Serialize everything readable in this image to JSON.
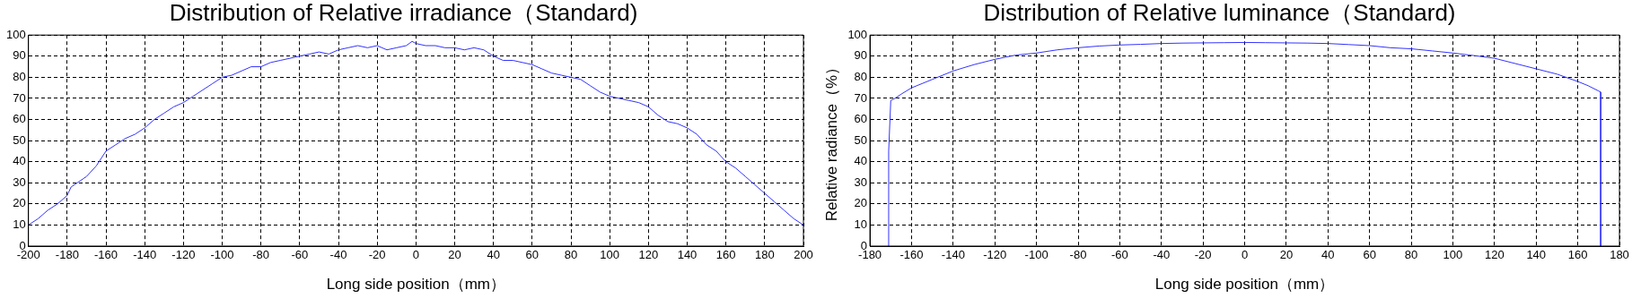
{
  "chart_data": [
    {
      "type": "line",
      "title": "Distribution of Relative irradiance（Standard)",
      "xlabel": "Long side position（mm）",
      "x": [
        -200,
        -195,
        -190,
        -185,
        -180,
        -178,
        -170,
        -165,
        -160,
        -155,
        -150,
        -145,
        -140,
        -135,
        -130,
        -125,
        -120,
        -115,
        -110,
        -105,
        -100,
        -95,
        -90,
        -85,
        -80,
        -75,
        -70,
        -65,
        -60,
        -55,
        -50,
        -45,
        -40,
        -35,
        -30,
        -25,
        -20,
        -15,
        -10,
        -5,
        -2,
        0,
        5,
        10,
        15,
        20,
        25,
        30,
        35,
        40,
        45,
        50,
        55,
        60,
        65,
        70,
        75,
        80,
        85,
        90,
        95,
        100,
        105,
        110,
        115,
        120,
        125,
        130,
        135,
        140,
        145,
        150,
        155,
        160,
        165,
        170,
        175,
        180,
        185,
        190,
        195,
        200
      ],
      "values": [
        10,
        13,
        17,
        20,
        24,
        28,
        33,
        38,
        45,
        48,
        51,
        53,
        56,
        60,
        63,
        66,
        68,
        71,
        74,
        77,
        80,
        81,
        83,
        85,
        85,
        87,
        88,
        89,
        90,
        91,
        92,
        91,
        93,
        94,
        95,
        94,
        95,
        93,
        94,
        95,
        97,
        96,
        95,
        95,
        94,
        94,
        93,
        94,
        93,
        90,
        88,
        88,
        87,
        86,
        84,
        82,
        81,
        80,
        79,
        76,
        73,
        71,
        70,
        69,
        68,
        66,
        62,
        59,
        58,
        56,
        53,
        48,
        45,
        40,
        37,
        33,
        29,
        25,
        21,
        17,
        13,
        10
      ],
      "color": "#3333ff",
      "xlim": [
        -200,
        200
      ],
      "xticks": [
        -200,
        -180,
        -160,
        -140,
        -120,
        -100,
        -80,
        -60,
        -40,
        -20,
        0,
        20,
        40,
        60,
        80,
        100,
        120,
        140,
        160,
        180,
        200
      ],
      "ylim": [
        0,
        100
      ],
      "yticks": [
        0,
        10,
        20,
        30,
        40,
        50,
        60,
        70,
        80,
        90,
        100
      ],
      "grid": true,
      "line_style": "solid",
      "marker": "none",
      "legend": false
    },
    {
      "type": "line",
      "title": "Distribution of Relative luminance（Standard)",
      "xlabel": "Long side position（mm）",
      "ylabel": "Relative radiance（%）",
      "x": [
        -171,
        -171,
        -170,
        -168,
        -165,
        -160,
        -155,
        -150,
        -140,
        -130,
        -120,
        -110,
        -100,
        -90,
        -80,
        -70,
        -60,
        -50,
        -40,
        -30,
        -20,
        -10,
        0,
        10,
        20,
        30,
        40,
        50,
        60,
        70,
        80,
        90,
        100,
        110,
        120,
        130,
        140,
        150,
        160,
        165,
        170,
        171,
        171
      ],
      "values": [
        0,
        45,
        69,
        70,
        72,
        75,
        77,
        79,
        83,
        86,
        88.5,
        90.5,
        91.5,
        93,
        94,
        94.8,
        95.3,
        95.6,
        96,
        96.2,
        96.3,
        96.4,
        96.5,
        96.4,
        96.3,
        96.2,
        96,
        95.5,
        95,
        94,
        93.5,
        92.5,
        91.5,
        90.3,
        89,
        86.5,
        84,
        81.5,
        78,
        76,
        73.5,
        73,
        0
      ],
      "color": "#3333ff",
      "xlim": [
        -180,
        180
      ],
      "xticks": [
        -180,
        -160,
        -140,
        -120,
        -100,
        -80,
        -60,
        -40,
        -20,
        0,
        20,
        40,
        60,
        80,
        100,
        120,
        140,
        160,
        180
      ],
      "ylim": [
        0,
        100
      ],
      "yticks": [
        0,
        10,
        20,
        30,
        40,
        50,
        60,
        70,
        80,
        90,
        100
      ],
      "grid": true,
      "line_style": "solid",
      "marker": "none",
      "legend": false
    }
  ]
}
